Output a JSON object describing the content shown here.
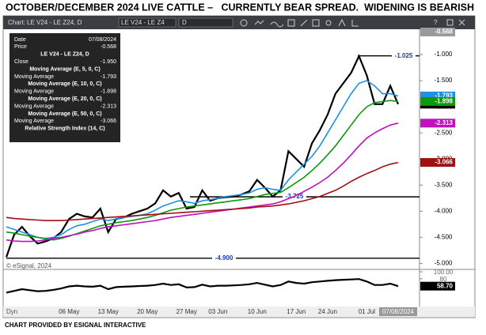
{
  "chart_data": [
    {
      "type": "line",
      "title": "OCTOBER/DECEMBER 2024 LIVE CATTLE –   CURRENTLY BEAR SPREAD.  WIDENING IS BEARISH",
      "source": "CHART PROVIDED BY ESIGNAL INTERACTIVE",
      "copyright": "© eSignal, 2024",
      "categories": [
        null,
        null,
        null,
        null,
        null,
        null,
        null,
        null,
        "06 May",
        null,
        null,
        null,
        null,
        "13 May",
        null,
        null,
        null,
        null,
        "20 May",
        null,
        null,
        null,
        null,
        "27 May",
        null,
        null,
        null,
        "03 Jun",
        null,
        null,
        null,
        null,
        "10 Jun",
        null,
        null,
        null,
        null,
        "17 Jun",
        null,
        null,
        null,
        "24 Jun",
        null,
        null,
        null,
        null,
        "01 Jul",
        null,
        null,
        null,
        "07/08/2024"
      ],
      "ylim": [
        -5.1,
        -0.53
      ],
      "yticks": [
        {
          "value": -1,
          "label": "-1.000"
        },
        {
          "value": -1.5,
          "label": "-1.500"
        },
        {
          "value": -2,
          "label": "-2.000"
        },
        {
          "value": -2.5,
          "label": "-2.500"
        },
        {
          "value": -3,
          "label": "-3.000"
        },
        {
          "value": -3.5,
          "label": "-3.500"
        },
        {
          "value": -4,
          "label": "-4.000"
        },
        {
          "value": -4.5,
          "label": "-4.500"
        },
        {
          "value": -5,
          "label": "-5.000"
        }
      ],
      "grid": false,
      "price": {
        "value": -0.568,
        "label": "-0.568"
      },
      "annotations": [
        {
          "value": -1.025,
          "label": "-1.025"
        },
        {
          "value": -3.725,
          "label": "-3.725"
        },
        {
          "value": -4.9,
          "label": "-4.900"
        }
      ],
      "series": [
        {
          "name": "LE V24 - LE Z24, D",
          "legend_label": "Close",
          "legend_value": "-1.950",
          "color": "#000000",
          "values": [
            -4.88,
            -4.45,
            -4.3,
            -4.48,
            -4.62,
            -4.58,
            -4.52,
            -4.4,
            -4.15,
            -4.05,
            -4.1,
            -4.12,
            -3.95,
            -4.4,
            -4.15,
            -4.12,
            -4.05,
            -4,
            -3.95,
            -3.85,
            -3.6,
            -3.72,
            -3.65,
            -3.95,
            -3.92,
            -3.6,
            -3.8,
            -3.75,
            -3.73,
            -3.72,
            -3.68,
            -3.62,
            -3.4,
            -3.55,
            -3.72,
            -3.6,
            -2.85,
            -3,
            -3.15,
            -2.7,
            -2.45,
            -2.15,
            -1.75,
            -1.55,
            -1.35,
            -1.03,
            -1.4,
            -1.95,
            -1.95,
            -1.6,
            -1.95
          ]
        },
        {
          "name": "Moving Average (E, 5, 0, C)",
          "legend_label": "Moving Average",
          "legend_value": "-1.793",
          "color": "#1e90e6",
          "values": [
            -4.3,
            -4.35,
            -4.4,
            -4.45,
            -4.5,
            -4.52,
            -4.5,
            -4.45,
            -4.35,
            -4.28,
            -4.25,
            -4.2,
            -4.15,
            -4.18,
            -4.15,
            -4.12,
            -4.1,
            -4.08,
            -4.05,
            -3.98,
            -3.9,
            -3.85,
            -3.8,
            -3.82,
            -3.85,
            -3.8,
            -3.78,
            -3.75,
            -3.72,
            -3.7,
            -3.68,
            -3.65,
            -3.58,
            -3.55,
            -3.58,
            -3.6,
            -3.4,
            -3.25,
            -3.1,
            -2.95,
            -2.75,
            -2.5,
            -2.25,
            -2,
            -1.75,
            -1.55,
            -1.5,
            -1.6,
            -1.75,
            -1.75,
            -1.793
          ]
        },
        {
          "name": "Moving Average (E, 10, 0, C)",
          "legend_label": "Moving Average",
          "legend_value": "-1.898",
          "color": "#0a9a0a",
          "values": [
            -4.4,
            -4.42,
            -4.45,
            -4.48,
            -4.5,
            -4.53,
            -4.55,
            -4.52,
            -4.48,
            -4.43,
            -4.38,
            -4.33,
            -4.28,
            -4.25,
            -4.22,
            -4.2,
            -4.18,
            -4.15,
            -4.12,
            -4.08,
            -4.03,
            -3.98,
            -3.95,
            -3.92,
            -3.9,
            -3.88,
            -3.86,
            -3.84,
            -3.82,
            -3.8,
            -3.78,
            -3.76,
            -3.72,
            -3.68,
            -3.66,
            -3.64,
            -3.55,
            -3.45,
            -3.35,
            -3.22,
            -3.08,
            -2.92,
            -2.75,
            -2.55,
            -2.35,
            -2.15,
            -2,
            -1.92,
            -1.9,
            -1.88,
            -1.898
          ]
        },
        {
          "name": "Moving Average (E, 20, 0, C)",
          "legend_label": "Moving Average",
          "legend_value": "-2.313",
          "color": "#c010c0",
          "values": [
            -4.55,
            -4.57,
            -4.58,
            -4.58,
            -4.57,
            -4.55,
            -4.52,
            -4.5,
            -4.47,
            -4.44,
            -4.4,
            -4.37,
            -4.33,
            -4.3,
            -4.28,
            -4.26,
            -4.24,
            -4.22,
            -4.2,
            -4.18,
            -4.15,
            -4.12,
            -4.1,
            -4.08,
            -4.06,
            -4.04,
            -4.02,
            -4,
            -3.98,
            -3.96,
            -3.94,
            -3.92,
            -3.9,
            -3.88,
            -3.86,
            -3.82,
            -3.76,
            -3.7,
            -3.62,
            -3.54,
            -3.45,
            -3.35,
            -3.22,
            -3.08,
            -2.92,
            -2.75,
            -2.6,
            -2.5,
            -2.42,
            -2.35,
            -2.313
          ]
        },
        {
          "name": "Moving Average (E, 50, 0, C)",
          "legend_label": "Moving Average",
          "legend_value": "-3.066",
          "color": "#a01010",
          "values": [
            -4.12,
            -4.14,
            -4.15,
            -4.16,
            -4.17,
            -4.18,
            -4.18,
            -4.18,
            -4.17,
            -4.16,
            -4.15,
            -4.14,
            -4.13,
            -4.12,
            -4.11,
            -4.1,
            -4.09,
            -4.08,
            -4.07,
            -4.06,
            -4.05,
            -4.04,
            -4.03,
            -4.02,
            -4.01,
            -4,
            -3.99,
            -3.98,
            -3.97,
            -3.96,
            -3.95,
            -3.94,
            -3.92,
            -3.91,
            -3.9,
            -3.88,
            -3.86,
            -3.83,
            -3.8,
            -3.76,
            -3.72,
            -3.66,
            -3.6,
            -3.52,
            -3.43,
            -3.35,
            -3.28,
            -3.22,
            -3.15,
            -3.1,
            -3.066
          ]
        }
      ]
    },
    {
      "type": "line",
      "ylim": [
        0,
        100
      ],
      "yticks": [
        {
          "value": 100,
          "label": "100.00"
        },
        80
      ],
      "series": [
        {
          "name": "Relative Strength Index (14, C)",
          "color": "#000000",
          "tag": "58.70",
          "values": [
            40,
            45,
            50,
            47,
            44,
            45,
            48,
            52,
            58,
            60,
            58,
            57,
            60,
            50,
            56,
            57,
            58,
            59,
            60,
            62,
            66,
            62,
            64,
            55,
            56,
            63,
            58,
            60,
            60,
            61,
            62,
            64,
            68,
            63,
            58,
            62,
            72,
            68,
            66,
            70,
            72,
            74,
            76,
            77,
            78,
            79,
            72,
            62,
            62,
            66,
            58.7
          ]
        }
      ]
    }
  ],
  "toolbar": {
    "title": "Chart: LE V24 - LE Z24, D",
    "symbol": "LE V24 - LE Z4",
    "interval": "D",
    "help": "?"
  },
  "legend_panel": {
    "date_label": "Date",
    "date": "07/08/2024",
    "price_label": "Price"
  },
  "footer": {
    "mode": "Dyn"
  }
}
